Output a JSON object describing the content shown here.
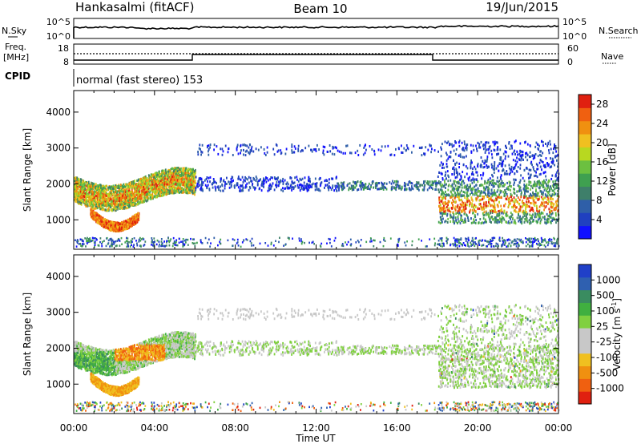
{
  "header": {
    "station": "Hankasalmi (fitACF)",
    "beam": "Beam 10",
    "date": "19/Jun/2015"
  },
  "noise_panel": {
    "left_label": "N.Sky",
    "left_ticks": [
      "10^5",
      "10^0"
    ],
    "right_ticks": [
      "10^5",
      "10^0"
    ],
    "right_label": "N.Search"
  },
  "freq_panel": {
    "left_label_1": "Freq.",
    "left_label_2": "[MHz]",
    "left_ticks": [
      "18",
      "8"
    ],
    "right_ticks": [
      "60",
      "0"
    ],
    "right_label": "Nave"
  },
  "cpid": {
    "label": "CPID",
    "mode_text": "normal (fast stereo) 153"
  },
  "chart_data": [
    {
      "type": "heatmap",
      "name": "Power",
      "ylabel": "Slant Range [km]",
      "xlabel": "Time UT",
      "x_ticks": [
        "00:00",
        "04:00",
        "08:00",
        "12:00",
        "16:00",
        "20:00",
        "00:00"
      ],
      "xlim_hours": [
        0,
        24
      ],
      "y_ticks": [
        "1000",
        "2000",
        "3000",
        "4000"
      ],
      "ylim": [
        180,
        4600
      ],
      "colorbar": {
        "label": "Power [dB]",
        "ticks": [
          "4",
          "8",
          "12",
          "16",
          "20",
          "24",
          "28"
        ],
        "range": [
          0,
          30
        ],
        "colors": [
          "#1010ff",
          "#2040c0",
          "#2f5fa8",
          "#3e7f6a",
          "#3fa050",
          "#6cc040",
          "#b8d820",
          "#f0c020",
          "#f09010",
          "#f06010",
          "#e02010"
        ]
      }
    },
    {
      "type": "heatmap",
      "name": "Velocity",
      "ylabel": "Slant Range [km]",
      "xlabel": "Time UT",
      "x_ticks": [
        "00:00",
        "04:00",
        "08:00",
        "12:00",
        "16:00",
        "20:00",
        "00:00"
      ],
      "xlim_hours": [
        0,
        24
      ],
      "y_ticks": [
        "1000",
        "2000",
        "3000",
        "4000"
      ],
      "ylim": [
        180,
        4600
      ],
      "colorbar": {
        "label": "Velocity [m s^-1]",
        "ticks": [
          "1000",
          "500",
          "100",
          "25",
          "-25",
          "-100",
          "-500",
          "-1000"
        ],
        "colors": [
          "#2040c8",
          "#2f60b0",
          "#3a8c60",
          "#40b040",
          "#80d040",
          "#c8c8c8",
          "#c8c8c8",
          "#f0c020",
          "#f09010",
          "#f06010",
          "#e02010"
        ]
      }
    }
  ]
}
